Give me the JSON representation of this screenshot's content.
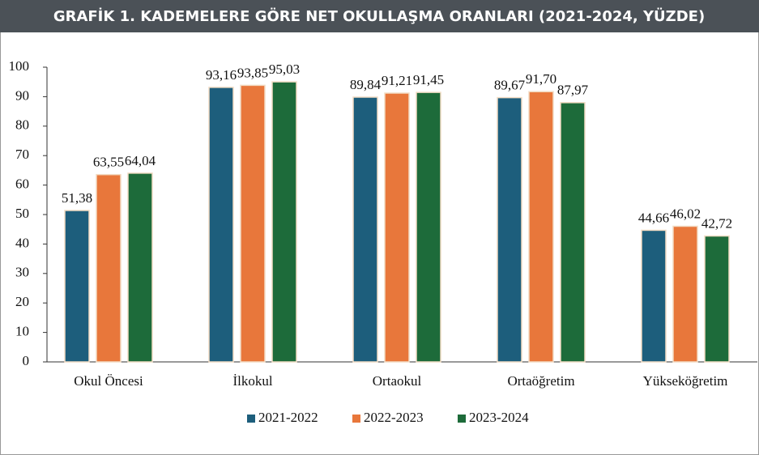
{
  "chart_data": {
    "type": "bar",
    "title": "GRAFİK 1. KADEMELERE GÖRE NET OKULLAŞMA ORANLARI (2021-2024, YÜZDE)",
    "categories": [
      "Okul Öncesi",
      "İlkokul",
      "Ortaokul",
      "Ortaöğretim",
      "Yükseköğretim"
    ],
    "series": [
      {
        "name": "2021-2022",
        "color": "#1d5e7c",
        "values": [
          51.38,
          93.16,
          89.84,
          89.67,
          44.66
        ],
        "value_labels": [
          "51,38",
          "93,16",
          "89,84",
          "89,67",
          "44,66"
        ]
      },
      {
        "name": "2022-2023",
        "color": "#e8773b",
        "values": [
          63.55,
          93.85,
          91.21,
          91.7,
          46.02
        ],
        "value_labels": [
          "63,55",
          "93,85",
          "91,21",
          "91,70",
          "46,02"
        ]
      },
      {
        "name": "2023-2024",
        "color": "#1d6b3a",
        "values": [
          64.04,
          95.03,
          91.45,
          87.97,
          42.72
        ],
        "value_labels": [
          "64,04",
          "95,03",
          "91,45",
          "87,97",
          "42,72"
        ]
      }
    ],
    "ylim": [
      0,
      100
    ],
    "yticks": [
      0,
      10,
      20,
      30,
      40,
      50,
      60,
      70,
      80,
      90,
      100
    ],
    "grid": false,
    "legend": "bottom"
  }
}
